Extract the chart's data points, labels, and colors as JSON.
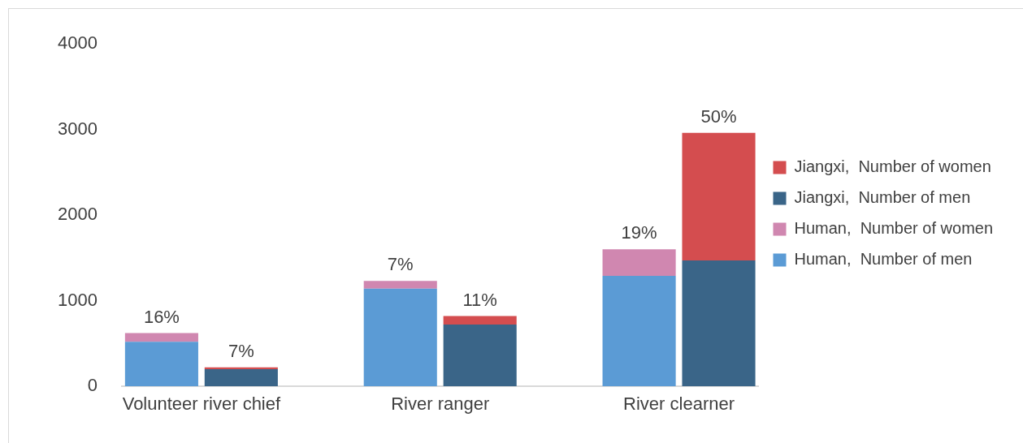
{
  "chart_data": {
    "type": "bar",
    "stacked": true,
    "categories": [
      "Volunteer river chief",
      null,
      null,
      "River ranger",
      null,
      null,
      "River clearner",
      null
    ],
    "series": [
      {
        "name": "Human,  Number of men",
        "color": "#5b9bd5",
        "values": [
          520,
          null,
          null,
          1140,
          null,
          null,
          1290,
          null
        ]
      },
      {
        "name": "Human,  Number of women",
        "color": "#d087b0",
        "values": [
          100,
          null,
          null,
          90,
          null,
          null,
          310,
          null
        ]
      },
      {
        "name": "Jiangxi,  Number of men",
        "color": "#3a6588",
        "values": [
          null,
          200,
          null,
          null,
          720,
          null,
          null,
          1470
        ]
      },
      {
        "name": "Jiangxi,  Number of women",
        "color": "#d44d4f",
        "values": [
          null,
          20,
          null,
          null,
          100,
          null,
          null,
          1490
        ]
      }
    ],
    "ylim": [
      0,
      4000
    ],
    "yticks": [
      0,
      1000,
      2000,
      3000,
      4000
    ],
    "legend": "right",
    "annotations": [
      {
        "text": "16%",
        "x": "Volunteer river chief",
        "y": 620
      },
      {
        "text": "7%",
        "y": 220
      },
      {
        "text": "7%",
        "x": "River ranger",
        "y": 1230
      },
      {
        "text": "11%",
        "y": 820
      },
      {
        "text": "19%",
        "x": "River clearner",
        "y": 1600
      },
      {
        "text": "50%",
        "y": 2960
      }
    ]
  }
}
